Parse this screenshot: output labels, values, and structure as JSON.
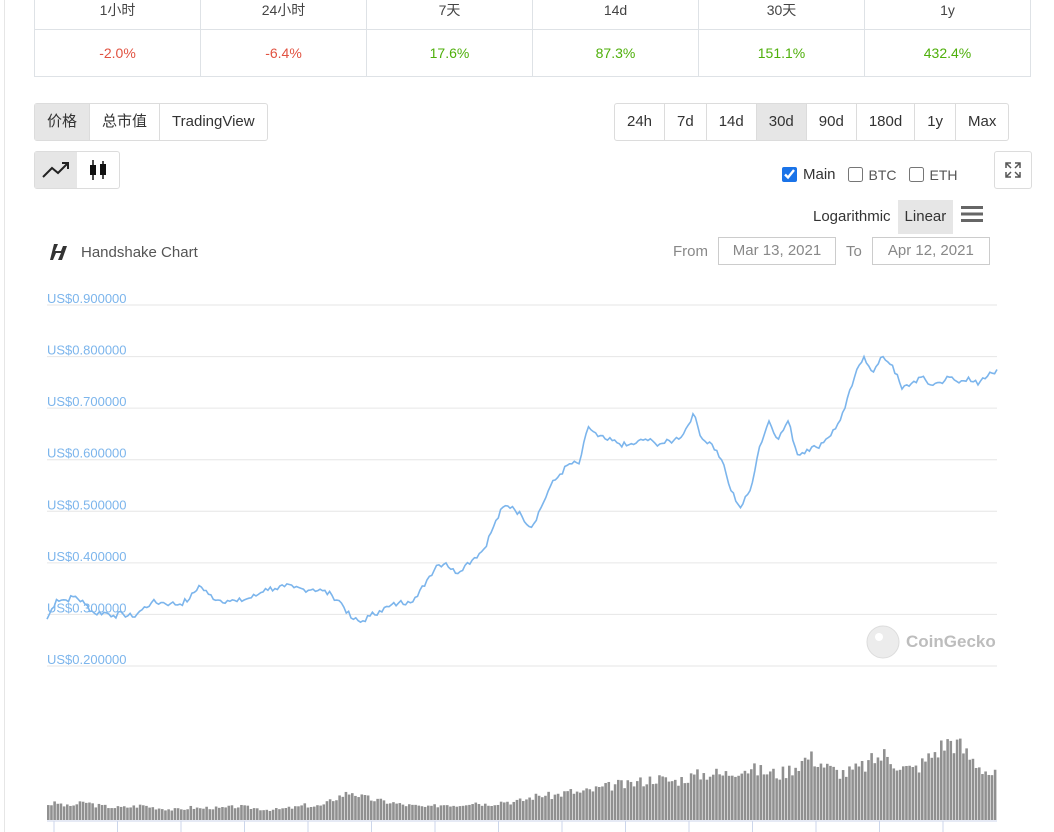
{
  "performance": {
    "headers": [
      "1小时",
      "24小时",
      "7天",
      "14d",
      "30天",
      "1y"
    ],
    "values": [
      {
        "text": "-2.0%",
        "sign": "neg"
      },
      {
        "text": "-6.4%",
        "sign": "neg"
      },
      {
        "text": "17.6%",
        "sign": "pos"
      },
      {
        "text": "87.3%",
        "sign": "pos"
      },
      {
        "text": "151.1%",
        "sign": "pos"
      },
      {
        "text": "432.4%",
        "sign": "pos"
      }
    ]
  },
  "view_tabs": {
    "items": [
      {
        "label": "价格",
        "active": true
      },
      {
        "label": "总市值",
        "active": false
      },
      {
        "label": "TradingView",
        "active": false
      }
    ]
  },
  "range_tabs": {
    "items": [
      {
        "label": "24h",
        "active": false
      },
      {
        "label": "7d",
        "active": false
      },
      {
        "label": "14d",
        "active": false
      },
      {
        "label": "30d",
        "active": true
      },
      {
        "label": "90d",
        "active": false
      },
      {
        "label": "180d",
        "active": false
      },
      {
        "label": "1y",
        "active": false
      },
      {
        "label": "Max",
        "active": false
      }
    ]
  },
  "chart_type": {
    "selected": "line",
    "icons": [
      "line-chart-icon",
      "candlestick-icon"
    ]
  },
  "compare": {
    "items": [
      {
        "label": "Main",
        "checked": true
      },
      {
        "label": "BTC",
        "checked": false
      },
      {
        "label": "ETH",
        "checked": false
      }
    ]
  },
  "scale": {
    "logarithmic_label": "Logarithmic",
    "linear_label": "Linear",
    "selected": "linear"
  },
  "chart_title": "Handshake Chart",
  "date_range": {
    "from_label": "From",
    "from_value": "Mar 13, 2021",
    "to_label": "To",
    "to_value": "Apr 12, 2021"
  },
  "watermark": "CoinGecko",
  "colors": {
    "price_line": "#7cb5ec",
    "axis_label": "#7cb5ec",
    "volume": "#909090",
    "negative": "#e15241",
    "positive": "#4eaf0a",
    "check_accent": "#1a73e8"
  },
  "chart_data": {
    "type": "line",
    "series": [
      {
        "x": [
          0,
          10,
          20,
          30,
          40,
          50,
          60,
          70,
          80,
          90,
          100,
          110,
          120,
          130,
          140,
          150,
          160,
          170,
          180,
          190,
          200,
          210,
          220,
          230,
          240,
          250,
          260,
          270,
          280,
          290,
          300,
          310,
          320,
          330,
          340,
          350,
          360,
          370,
          380,
          390,
          400,
          410,
          420,
          430,
          440,
          450,
          460,
          470,
          480,
          490,
          500,
          510,
          520,
          530,
          540,
          550,
          560,
          570,
          580,
          590,
          600,
          610,
          620,
          630,
          640,
          650,
          660,
          670,
          680,
          690,
          700,
          710,
          720,
          730,
          740,
          750,
          760,
          770,
          780,
          790,
          800,
          810,
          820,
          830,
          840,
          850,
          860,
          870,
          880,
          890,
          900,
          910,
          920,
          930,
          940,
          950,
          960,
          970,
          980,
          990,
          1000
        ],
        "values": [
          0.291,
          0.329,
          0.328,
          0.335,
          0.32,
          0.302,
          0.304,
          0.298,
          0.301,
          0.295,
          0.309,
          0.323,
          0.323,
          0.321,
          0.32,
          0.33,
          0.356,
          0.339,
          0.328,
          0.327,
          0.325,
          0.33,
          0.336,
          0.35,
          0.35,
          0.354,
          0.352,
          0.349,
          0.349,
          0.346,
          0.337,
          0.322,
          0.293,
          0.285,
          0.297,
          0.307,
          0.315,
          0.322,
          0.325,
          0.335,
          0.367,
          0.395,
          0.4,
          0.38,
          0.395,
          0.41,
          0.427,
          0.47,
          0.508,
          0.509,
          0.49,
          0.469,
          0.507,
          0.549,
          0.572,
          0.592,
          0.592,
          0.664,
          0.645,
          0.638,
          0.633,
          0.627,
          0.632,
          0.64,
          0.632,
          0.632,
          0.638,
          0.65,
          0.689,
          0.64,
          0.63,
          0.6,
          0.54,
          0.507,
          0.54,
          0.625,
          0.675,
          0.64,
          0.675,
          0.61,
          0.62,
          0.624,
          0.64,
          0.66,
          0.7,
          0.76,
          0.8,
          0.77,
          0.8,
          0.783,
          0.737,
          0.748,
          0.76,
          0.745,
          0.75,
          0.76,
          0.749,
          0.76,
          0.745,
          0.762,
          0.775
        ]
      }
    ],
    "volume": [
      0.15,
      0.16,
      0.13,
      0.15,
      0.17,
      0.14,
      0.13,
      0.12,
      0.12,
      0.13,
      0.14,
      0.12,
      0.11,
      0.1,
      0.1,
      0.12,
      0.11,
      0.12,
      0.11,
      0.12,
      0.13,
      0.12,
      0.11,
      0.1,
      0.1,
      0.11,
      0.12,
      0.14,
      0.13,
      0.14,
      0.2,
      0.24,
      0.27,
      0.22,
      0.2,
      0.18,
      0.17,
      0.15,
      0.14,
      0.13,
      0.12,
      0.14,
      0.15,
      0.14,
      0.16,
      0.17,
      0.15,
      0.16,
      0.18,
      0.17,
      0.19,
      0.22,
      0.24,
      0.23,
      0.25,
      0.27,
      0.26,
      0.28,
      0.3,
      0.32,
      0.34,
      0.33,
      0.36,
      0.38,
      0.4,
      0.38,
      0.37,
      0.4,
      0.42,
      0.44,
      0.45,
      0.43,
      0.46,
      0.5,
      0.48,
      0.47,
      0.45,
      0.44,
      0.48,
      0.54,
      0.6,
      0.57,
      0.5,
      0.46,
      0.45,
      0.48,
      0.52,
      0.58,
      0.62,
      0.56,
      0.5,
      0.48,
      0.54,
      0.62,
      0.7,
      0.76,
      0.7,
      0.6,
      0.52,
      0.45,
      0.42
    ],
    "ylim": [
      0.2,
      0.9
    ],
    "y_ticks": [
      "US$0.900000",
      "US$0.800000",
      "US$0.700000",
      "US$0.600000",
      "US$0.500000",
      "US$0.400000",
      "US$0.300000",
      "US$0.200000"
    ],
    "grid": true,
    "legend": "none"
  }
}
